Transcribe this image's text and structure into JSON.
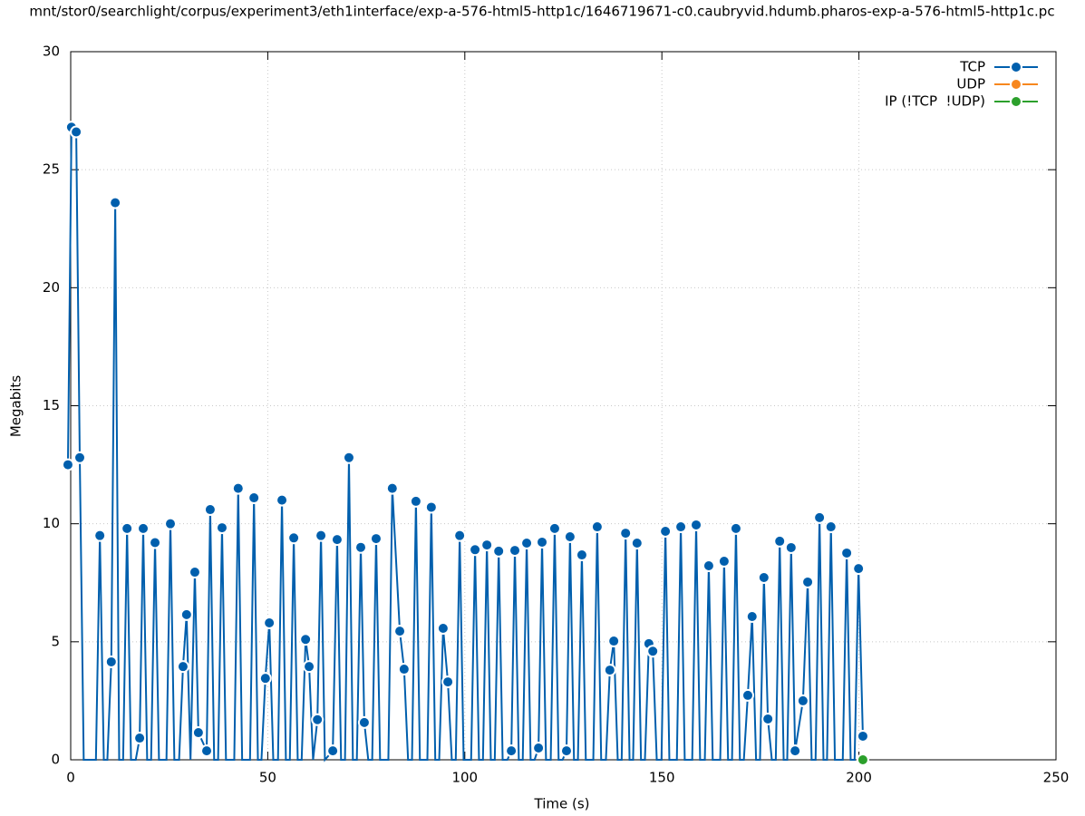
{
  "chart_data": {
    "type": "line",
    "title": "mnt/stor0/searchlight/corpus/experiment3/eth1interface/exp-a-576-html5-http1c/1646719671-c0.caubryvid.hdumb.pharos-exp-a-576-html5-http1c.pc",
    "x_label": "Time (s)",
    "y_label": "Megabits",
    "xlim": [
      0,
      250
    ],
    "xticks": [
      0,
      50,
      100,
      150,
      200,
      250
    ],
    "ylim": [
      0,
      30
    ],
    "yticks": [
      0,
      5,
      10,
      15,
      20,
      25,
      30
    ],
    "grid": true,
    "legend": "top-right",
    "series": [
      {
        "name": "TCP",
        "color": "#005fad",
        "x": [
          -0.7,
          0.2,
          1.4,
          2.3,
          3.3,
          6.4,
          7.4,
          8.4,
          9.3,
          10.3,
          11.3,
          12.3,
          13.3,
          14.3,
          15.3,
          16.5,
          17.5,
          18.4,
          19.4,
          20.4,
          21.4,
          22.4,
          24.3,
          25.3,
          26.3,
          27.5,
          28.5,
          29.4,
          30.4,
          31.5,
          32.4,
          34.5,
          35.4,
          36.4,
          37.4,
          38.4,
          39.4,
          41.5,
          42.5,
          43.5,
          45.5,
          46.5,
          47.5,
          48.4,
          49.4,
          50.4,
          51.4,
          52.6,
          53.6,
          54.6,
          55.6,
          56.6,
          57.6,
          58.6,
          59.6,
          60.5,
          61.5,
          62.6,
          63.5,
          64.5,
          66.5,
          67.6,
          68.6,
          69.6,
          70.6,
          71.6,
          72.6,
          73.6,
          74.5,
          75.5,
          76.5,
          77.5,
          78.5,
          80.6,
          81.6,
          83.5,
          84.6,
          85.6,
          86.6,
          87.6,
          88.6,
          90.5,
          91.5,
          92.5,
          93.5,
          94.5,
          95.7,
          96.7,
          97.7,
          98.7,
          99.7,
          101.6,
          102.6,
          103.6,
          104.6,
          105.6,
          106.6,
          107.6,
          108.6,
          109.6,
          110.8,
          111.8,
          112.7,
          113.7,
          114.7,
          115.7,
          116.7,
          117.7,
          118.7,
          119.6,
          120.6,
          121.8,
          122.8,
          123.8,
          124.8,
          125.8,
          126.7,
          127.7,
          128.7,
          129.7,
          130.7,
          132.6,
          133.6,
          134.6,
          135.8,
          136.8,
          137.8,
          138.8,
          139.8,
          140.8,
          141.8,
          142.7,
          143.7,
          144.7,
          145.7,
          146.7,
          147.7,
          148.7,
          149.9,
          150.9,
          151.9,
          153.8,
          154.8,
          155.8,
          157.7,
          158.7,
          159.7,
          160.9,
          161.9,
          162.9,
          164.8,
          165.8,
          166.8,
          167.8,
          168.8,
          169.8,
          170.8,
          171.8,
          172.9,
          173.9,
          174.9,
          175.9,
          176.9,
          177.9,
          178.9,
          179.9,
          180.9,
          181.8,
          182.8,
          183.8,
          185.8,
          187.0,
          188.0,
          189.0,
          190.0,
          191.0,
          191.9,
          192.9,
          193.9,
          195.9,
          196.9,
          197.9,
          198.9,
          199.9,
          201.0
        ],
        "values": [
          12.5,
          26.8,
          26.6,
          12.8,
          0,
          0,
          9.5,
          0,
          0,
          4.15,
          23.6,
          0,
          0,
          9.8,
          0,
          0,
          0.92,
          9.8,
          0,
          0,
          9.2,
          0,
          0,
          10.0,
          0,
          0,
          3.95,
          6.15,
          0,
          7.95,
          1.15,
          0.38,
          10.6,
          0,
          0,
          9.83,
          0,
          0,
          11.5,
          0,
          0,
          11.1,
          0,
          0,
          3.45,
          5.8,
          0,
          0,
          11.0,
          0,
          0,
          9.4,
          0,
          0,
          5.1,
          3.95,
          0,
          1.7,
          9.5,
          0,
          0.38,
          9.33,
          0,
          0,
          12.8,
          0,
          0,
          9.0,
          1.58,
          0,
          0,
          9.37,
          0,
          0,
          11.5,
          5.45,
          3.84,
          0,
          0,
          10.95,
          0,
          0,
          10.7,
          0,
          0,
          5.57,
          3.3,
          0,
          0,
          9.5,
          0,
          0,
          8.9,
          0,
          0,
          9.1,
          0,
          0,
          8.84,
          0,
          0,
          0.38,
          8.87,
          0,
          0,
          9.18,
          0,
          0,
          0.5,
          9.22,
          0,
          0,
          9.8,
          0,
          0,
          0.38,
          9.45,
          0,
          0,
          8.68,
          0,
          0,
          9.87,
          0,
          0,
          3.8,
          5.03,
          0,
          0,
          9.6,
          0,
          0,
          9.18,
          0,
          0,
          4.92,
          4.6,
          0,
          0,
          9.68,
          0,
          0,
          9.87,
          0,
          0,
          9.95,
          0,
          0,
          8.22,
          0,
          0,
          8.41,
          0,
          0,
          9.8,
          0,
          0,
          2.73,
          6.07,
          0,
          0,
          7.72,
          1.73,
          0,
          0,
          9.26,
          0,
          0,
          8.99,
          0.38,
          2.5,
          7.53,
          0,
          0,
          10.26,
          0,
          0,
          9.87,
          0,
          0,
          8.76,
          0,
          0,
          8.1,
          1.0
        ]
      },
      {
        "name": "UDP",
        "color": "#f7871e",
        "x": [],
        "values": []
      },
      {
        "name": "IP (!TCP  !UDP)",
        "color": "#2ca02c",
        "x": [
          201
        ],
        "values": [
          0
        ]
      }
    ]
  }
}
